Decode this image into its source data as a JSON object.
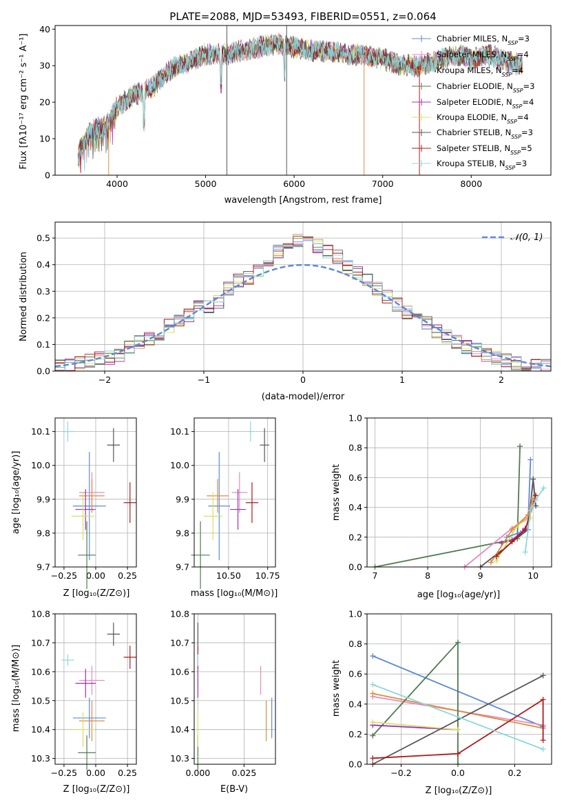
{
  "chart_data": [
    {
      "type": "line",
      "title": "PLATE=2088, MJD=53493, FIBERID=0551, z=0.064",
      "xlabel": "wavelength [Angstrom, rest frame]",
      "ylabel": "Flux [fλ10⁻¹⁷ erg cm⁻² s⁻¹ A⁻¹]",
      "xlim": [
        3300,
        8900
      ],
      "ylim": [
        0,
        41
      ],
      "xticks": [
        4000,
        5000,
        6000,
        7000,
        8000
      ],
      "yticks": [
        0,
        10,
        20,
        30,
        40
      ],
      "legend_position": "top-right",
      "spectrum_envelope": {
        "x": [
          3550,
          3700,
          3900,
          4000,
          4200,
          4400,
          4600,
          4800,
          5000,
          5200,
          5400,
          5600,
          5800,
          6000,
          6200,
          6400,
          6600,
          6800,
          7000,
          7200,
          7400,
          7600,
          7800,
          8000,
          8200,
          8400,
          8600
        ],
        "y": [
          6,
          12,
          14,
          19,
          22,
          24,
          29,
          31,
          33,
          33,
          34,
          35,
          36,
          35,
          34,
          34,
          33,
          33,
          32,
          30,
          30,
          31,
          33,
          32,
          33,
          31,
          30
        ]
      },
      "series": [
        {
          "name": "Chabrier MILES, N",
          "sub": "SSP",
          "suffix": "=3",
          "color": "#5b8ad6"
        },
        {
          "name": "Salpeter MILES, N",
          "sub": "SSP",
          "suffix": "=4",
          "color": "#e48ac0"
        },
        {
          "name": "Kroupa MILES, N",
          "sub": "SSP",
          "suffix": "=4",
          "color": "#e08a3c"
        },
        {
          "name": "Chabrier ELODIE, N",
          "sub": "SSP",
          "suffix": "=3",
          "color": "#4f7a4f"
        },
        {
          "name": "Salpeter ELODIE, N",
          "sub": "SSP",
          "suffix": "=4",
          "color": "#9b30b0"
        },
        {
          "name": "Kroupa ELODIE, N",
          "sub": "SSP",
          "suffix": "=4",
          "color": "#d8e060"
        },
        {
          "name": "Chabrier STELIB, N",
          "sub": "SSP",
          "suffix": "=3",
          "color": "#555555"
        },
        {
          "name": "Salpeter STELIB, N",
          "sub": "SSP",
          "suffix": "=5",
          "color": "#b01818"
        },
        {
          "name": "Kroupa STELIB, N",
          "sub": "SSP",
          "suffix": "=3",
          "color": "#8ad8dc"
        }
      ]
    },
    {
      "type": "line",
      "xlabel": "(data-model)/error",
      "ylabel": "Normed distribution",
      "xlim": [
        -2.5,
        2.5
      ],
      "ylim": [
        0,
        0.56
      ],
      "xticks": [
        -2,
        -1,
        0,
        1,
        2
      ],
      "xtick_labels": [
        "−2",
        "−1",
        "0",
        "1",
        "2"
      ],
      "yticks": [
        0.0,
        0.1,
        0.2,
        0.3,
        0.4,
        0.5
      ],
      "ytick_labels": [
        "0.0",
        "0.1",
        "0.2",
        "0.3",
        "0.4",
        "0.5"
      ],
      "grid": true,
      "legend_position": "top-right",
      "legend_label": "𝒩(0, 1)",
      "reference_curve": "normal pdf, mean 0, sigma 1",
      "histogram_bins": [
        -2.5,
        -2.4,
        -2.3,
        -2.2,
        -2.1,
        -2.0,
        -1.9,
        -1.8,
        -1.7,
        -1.6,
        -1.5,
        -1.4,
        -1.3,
        -1.2,
        -1.1,
        -1.0,
        -0.9,
        -0.8,
        -0.7,
        -0.6,
        -0.5,
        -0.4,
        -0.3,
        -0.2,
        -0.1,
        0.0,
        0.1,
        0.2,
        0.3,
        0.4,
        0.5,
        0.6,
        0.7,
        0.8,
        0.9,
        1.0,
        1.1,
        1.2,
        1.3,
        1.4,
        1.5,
        1.6,
        1.7,
        1.8,
        1.9,
        2.0,
        2.1,
        2.2,
        2.3,
        2.4,
        2.5
      ],
      "histogram_base": [
        0.02,
        0.02,
        0.03,
        0.04,
        0.05,
        0.05,
        0.06,
        0.09,
        0.11,
        0.12,
        0.14,
        0.17,
        0.19,
        0.21,
        0.24,
        0.24,
        0.26,
        0.31,
        0.34,
        0.35,
        0.38,
        0.42,
        0.45,
        0.47,
        0.49,
        0.48,
        0.47,
        0.45,
        0.43,
        0.39,
        0.37,
        0.34,
        0.31,
        0.28,
        0.25,
        0.22,
        0.2,
        0.18,
        0.15,
        0.13,
        0.11,
        0.09,
        0.08,
        0.06,
        0.05,
        0.04,
        0.03,
        0.02,
        0.02,
        0.02
      ]
    },
    {
      "type": "scatter",
      "xlabel": "Z [log₁₀(Z/Z⊙)]",
      "ylabel": "age  [log₁₀(age/yr)]",
      "xlim": [
        -0.32,
        0.32
      ],
      "ylim": [
        9.7,
        10.14
      ],
      "xticks": [
        -0.25,
        0.0,
        0.25
      ],
      "xtick_labels": [
        "−0.25",
        "0.00",
        "0.25"
      ],
      "yticks": [
        9.7,
        9.8,
        9.9,
        10.0,
        10.1
      ],
      "ytick_labels": [
        "9.7",
        "9.8",
        "9.9",
        "10.0",
        "10.1"
      ],
      "points": [
        {
          "x": -0.05,
          "y": 9.88,
          "xerr": 0.13,
          "yerr": 0.16,
          "color": "#5b8ad6"
        },
        {
          "x": -0.03,
          "y": 9.92,
          "xerr": 0.1,
          "yerr": 0.06,
          "color": "#e48ac0"
        },
        {
          "x": -0.03,
          "y": 9.91,
          "xerr": 0.1,
          "yerr": 0.05,
          "color": "#e08a3c"
        },
        {
          "x": -0.07,
          "y": 9.735,
          "xerr": 0.07,
          "yerr": 0.1,
          "color": "#4f7a4f"
        },
        {
          "x": -0.08,
          "y": 9.87,
          "xerr": 0.08,
          "yerr": 0.06,
          "color": "#9b30b0"
        },
        {
          "x": -0.1,
          "y": 9.85,
          "xerr": 0.09,
          "yerr": 0.07,
          "color": "#d8e060"
        },
        {
          "x": 0.14,
          "y": 10.06,
          "xerr": 0.05,
          "yerr": 0.05,
          "color": "#555555"
        },
        {
          "x": 0.27,
          "y": 9.89,
          "xerr": 0.05,
          "yerr": 0.06,
          "color": "#b01818"
        },
        {
          "x": -0.22,
          "y": 10.1,
          "xerr": 0.05,
          "yerr": 0.03,
          "color": "#8ad8dc"
        }
      ]
    },
    {
      "type": "scatter",
      "xlabel": "mass [log₁₀(M/M⊙)]",
      "xlim": [
        10.28,
        10.8
      ],
      "ylim": [
        9.7,
        10.14
      ],
      "xticks": [
        10.5,
        10.75
      ],
      "xtick_labels": [
        "10.50",
        "10.75"
      ],
      "yticks": [
        9.7,
        9.8,
        9.9,
        10.0,
        10.1
      ],
      "ytick_labels": [
        "9.7",
        "9.8",
        "9.9",
        "10.0",
        "10.1"
      ],
      "points": [
        {
          "x": 10.44,
          "y": 9.88,
          "xerr": 0.07,
          "yerr": 0.16,
          "color": "#5b8ad6"
        },
        {
          "x": 10.57,
          "y": 9.92,
          "xerr": 0.05,
          "yerr": 0.06,
          "color": "#e48ac0"
        },
        {
          "x": 10.43,
          "y": 9.91,
          "xerr": 0.07,
          "yerr": 0.05,
          "color": "#e08a3c"
        },
        {
          "x": 10.32,
          "y": 9.735,
          "xerr": 0.06,
          "yerr": 0.1,
          "color": "#4f7a4f"
        },
        {
          "x": 10.56,
          "y": 9.87,
          "xerr": 0.05,
          "yerr": 0.06,
          "color": "#9b30b0"
        },
        {
          "x": 10.4,
          "y": 9.85,
          "xerr": 0.06,
          "yerr": 0.07,
          "color": "#d8e060"
        },
        {
          "x": 10.73,
          "y": 10.06,
          "xerr": 0.03,
          "yerr": 0.05,
          "color": "#555555"
        },
        {
          "x": 10.65,
          "y": 9.89,
          "xerr": 0.04,
          "yerr": 0.06,
          "color": "#b01818"
        },
        {
          "x": 10.64,
          "y": 10.1,
          "xerr": 0.02,
          "yerr": 0.03,
          "color": "#8ad8dc"
        }
      ]
    },
    {
      "type": "line",
      "xlabel": "age  [log₁₀(age/yr)]",
      "ylabel": "mass weight",
      "xlim": [
        6.85,
        10.35
      ],
      "ylim": [
        0,
        1
      ],
      "xticks": [
        7,
        8,
        9,
        10
      ],
      "xtick_labels": [
        "7",
        "8",
        "9",
        "10"
      ],
      "yticks": [
        0.0,
        0.2,
        0.4,
        0.6,
        0.8,
        1.0
      ],
      "ytick_labels": [
        "0.0",
        "0.2",
        "0.4",
        "0.6",
        "0.8",
        "1.0"
      ],
      "grid": true,
      "series": [
        {
          "color": "#4f7a4f",
          "x": [
            7.0,
            9.7,
            9.75
          ],
          "y": [
            0.0,
            0.19,
            0.81
          ]
        },
        {
          "color": "#555555",
          "x": [
            9.0,
            9.9,
            10.0,
            10.05
          ],
          "y": [
            0.0,
            0.25,
            0.59,
            0.41
          ]
        },
        {
          "color": "#e48ac0",
          "x": [
            8.7,
            9.6,
            9.9,
            10.05
          ],
          "y": [
            0.0,
            0.26,
            0.33,
            0.45
          ]
        },
        {
          "color": "#9b30b0",
          "x": [
            9.4,
            9.6,
            9.8,
            9.85
          ],
          "y": [
            0.16,
            0.18,
            0.24,
            0.26
          ]
        },
        {
          "color": "#d8e060",
          "x": [
            9.3,
            9.7,
            9.95
          ],
          "y": [
            0.04,
            0.28,
            0.33
          ]
        },
        {
          "color": "#5b8ad6",
          "x": [
            9.5,
            9.9,
            9.95
          ],
          "y": [
            0.2,
            0.25,
            0.72
          ]
        },
        {
          "color": "#e08a3c",
          "x": [
            9.2,
            9.6,
            9.9,
            10.0
          ],
          "y": [
            0.03,
            0.25,
            0.35,
            0.46
          ]
        },
        {
          "color": "#b01818",
          "x": [
            9.3,
            9.6,
            9.85,
            10.05
          ],
          "y": [
            0.07,
            0.17,
            0.25,
            0.48
          ]
        },
        {
          "color": "#8ad8dc",
          "x": [
            9.85,
            9.95,
            10.05,
            10.2
          ],
          "y": [
            0.1,
            0.38,
            0.45,
            0.53
          ]
        }
      ]
    },
    {
      "type": "scatter",
      "xlabel": "Z [log₁₀(Z/Z⊙)]",
      "ylabel": "mass [log₁₀(M/M⊙)]",
      "xlim": [
        -0.32,
        0.32
      ],
      "ylim": [
        10.28,
        10.8
      ],
      "xticks": [
        -0.25,
        0.0,
        0.25
      ],
      "xtick_labels": [
        "−0.25",
        "0.00",
        "0.25"
      ],
      "yticks": [
        10.3,
        10.4,
        10.5,
        10.6,
        10.7,
        10.8
      ],
      "ytick_labels": [
        "10.3",
        "10.4",
        "10.5",
        "10.6",
        "10.7",
        "10.8"
      ],
      "points": [
        {
          "x": -0.05,
          "y": 10.44,
          "xerr": 0.13,
          "yerr": 0.07,
          "color": "#5b8ad6"
        },
        {
          "x": -0.03,
          "y": 10.57,
          "xerr": 0.1,
          "yerr": 0.05,
          "color": "#e48ac0"
        },
        {
          "x": -0.03,
          "y": 10.43,
          "xerr": 0.1,
          "yerr": 0.07,
          "color": "#e08a3c"
        },
        {
          "x": -0.07,
          "y": 10.32,
          "xerr": 0.07,
          "yerr": 0.06,
          "color": "#4f7a4f"
        },
        {
          "x": -0.08,
          "y": 10.56,
          "xerr": 0.08,
          "yerr": 0.05,
          "color": "#9b30b0"
        },
        {
          "x": -0.1,
          "y": 10.4,
          "xerr": 0.09,
          "yerr": 0.06,
          "color": "#d8e060"
        },
        {
          "x": 0.14,
          "y": 10.73,
          "xerr": 0.05,
          "yerr": 0.04,
          "color": "#555555"
        },
        {
          "x": 0.27,
          "y": 10.65,
          "xerr": 0.05,
          "yerr": 0.04,
          "color": "#b01818"
        },
        {
          "x": -0.22,
          "y": 10.64,
          "xerr": 0.05,
          "yerr": 0.02,
          "color": "#8ad8dc"
        }
      ]
    },
    {
      "type": "scatter",
      "xlabel": "E(B-V)",
      "xlim": [
        -0.002,
        0.042
      ],
      "ylim": [
        10.28,
        10.8
      ],
      "xticks": [
        0.0,
        0.025
      ],
      "xtick_labels": [
        "0.000",
        "0.025"
      ],
      "yticks": [
        10.3,
        10.4,
        10.5,
        10.6,
        10.7,
        10.8
      ],
      "ytick_labels": [
        "10.3",
        "10.4",
        "10.5",
        "10.6",
        "10.7",
        "10.8"
      ],
      "points": [
        {
          "x": 0.04,
          "y": 10.44,
          "xerr": 0.0,
          "yerr": 0.07,
          "color": "#5b8ad6"
        },
        {
          "x": 0.034,
          "y": 10.57,
          "xerr": 0.0,
          "yerr": 0.05,
          "color": "#e48ac0"
        },
        {
          "x": 0.037,
          "y": 10.43,
          "xerr": 0.0,
          "yerr": 0.07,
          "color": "#e08a3c"
        },
        {
          "x": 0.0,
          "y": 10.32,
          "xerr": 0.0,
          "yerr": 0.06,
          "color": "#4f7a4f"
        },
        {
          "x": 0.0,
          "y": 10.56,
          "xerr": 0.0,
          "yerr": 0.05,
          "color": "#9b30b0"
        },
        {
          "x": 0.0,
          "y": 10.4,
          "xerr": 0.0,
          "yerr": 0.06,
          "color": "#d8e060"
        },
        {
          "x": 0.0,
          "y": 10.73,
          "xerr": 0.0,
          "yerr": 0.04,
          "color": "#555555"
        },
        {
          "x": 0.0,
          "y": 10.65,
          "xerr": 0.0,
          "yerr": 0.04,
          "color": "#b01818"
        },
        {
          "x": 0.0,
          "y": 10.64,
          "xerr": 0.0,
          "yerr": 0.02,
          "color": "#8ad8dc"
        }
      ]
    },
    {
      "type": "line",
      "xlabel": "Z [log₁₀(Z/Z⊙)]",
      "ylabel": "mass weight",
      "xlim": [
        -0.32,
        0.33
      ],
      "ylim": [
        0,
        1
      ],
      "xticks": [
        -0.2,
        0.0,
        0.2
      ],
      "xtick_labels": [
        "−0.2",
        "0.0",
        "0.2"
      ],
      "yticks": [
        0.0,
        0.2,
        0.4,
        0.6,
        0.8,
        1.0
      ],
      "ytick_labels": [
        "0.0",
        "0.2",
        "0.4",
        "0.6",
        "0.8",
        "1.0"
      ],
      "grid": true,
      "series": [
        {
          "color": "#5b8ad6",
          "x": [
            -0.3,
            0.3
          ],
          "y": [
            0.72,
            0.25
          ]
        },
        {
          "color": "#e48ac0",
          "x": [
            -0.3,
            0.3
          ],
          "y": [
            0.45,
            0.26
          ]
        },
        {
          "color": "#e08a3c",
          "x": [
            -0.3,
            0.3
          ],
          "y": [
            0.47,
            0.24
          ]
        },
        {
          "color": "#4f7a4f",
          "x": [
            -0.3,
            0.0,
            0.0
          ],
          "y": [
            0.19,
            0.81,
            0.0
          ]
        },
        {
          "color": "#9b30b0",
          "x": [
            -0.3,
            0.0
          ],
          "y": [
            0.26,
            0.23
          ]
        },
        {
          "color": "#d8e060",
          "x": [
            -0.3,
            0.0
          ],
          "y": [
            0.28,
            0.23
          ]
        },
        {
          "color": "#555555",
          "x": [
            -0.3,
            0.3
          ],
          "y": [
            0.0,
            0.59
          ]
        },
        {
          "color": "#b01818",
          "x": [
            -0.3,
            0.0,
            0.3,
            0.3
          ],
          "y": [
            0.04,
            0.07,
            0.43,
            0.16
          ]
        },
        {
          "color": "#8ad8dc",
          "x": [
            -0.3,
            0.3
          ],
          "y": [
            0.53,
            0.1
          ]
        }
      ]
    }
  ]
}
